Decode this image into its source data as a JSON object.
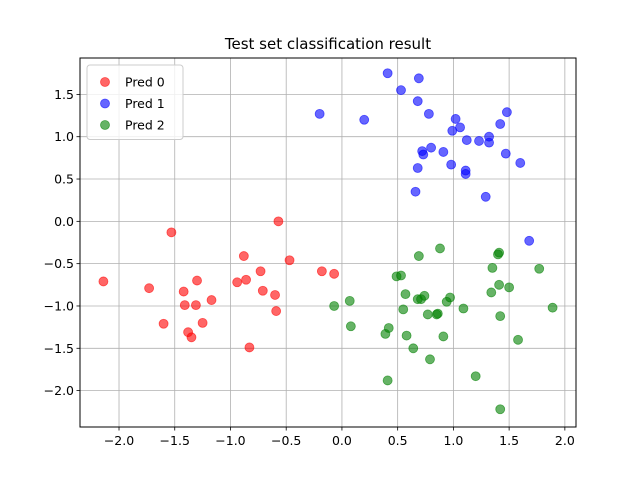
{
  "chart_data": {
    "type": "scatter",
    "title": "Test set classification result",
    "xlabel": "",
    "ylabel": "",
    "xlim": [
      -2.35,
      2.1
    ],
    "ylim": [
      -2.43,
      1.93
    ],
    "xticks": [
      -2.0,
      -1.5,
      -1.0,
      -0.5,
      0.0,
      0.5,
      1.0,
      1.5,
      2.0
    ],
    "xtick_labels": [
      "−2.0",
      "−1.5",
      "−1.0",
      "−0.5",
      "0.0",
      "0.5",
      "1.0",
      "1.5",
      "2.0"
    ],
    "yticks": [
      -2.0,
      -1.5,
      -1.0,
      -0.5,
      0.0,
      0.5,
      1.0,
      1.5
    ],
    "ytick_labels": [
      "−2.0",
      "−1.5",
      "−1.0",
      "−0.5",
      "0.0",
      "0.5",
      "1.0",
      "1.5"
    ],
    "grid": true,
    "legend_position": "top-left",
    "series": [
      {
        "name": "Pred 0",
        "color": "#ff0000",
        "points": [
          [
            -2.14,
            -0.71
          ],
          [
            -1.73,
            -0.79
          ],
          [
            -1.53,
            -0.13
          ],
          [
            -1.42,
            -0.83
          ],
          [
            -1.41,
            -0.99
          ],
          [
            -1.3,
            -0.7
          ],
          [
            -1.31,
            -0.99
          ],
          [
            -1.38,
            -1.31
          ],
          [
            -1.35,
            -1.37
          ],
          [
            -1.25,
            -1.2
          ],
          [
            -1.6,
            -1.21
          ],
          [
            -1.17,
            -0.93
          ],
          [
            -0.94,
            -0.72
          ],
          [
            -0.88,
            -0.41
          ],
          [
            -0.86,
            -0.69
          ],
          [
            -0.83,
            -1.49
          ],
          [
            -0.73,
            -0.59
          ],
          [
            -0.71,
            -0.82
          ],
          [
            -0.6,
            -0.87
          ],
          [
            -0.59,
            -1.06
          ],
          [
            -0.57,
            0.0
          ],
          [
            -0.47,
            -0.46
          ],
          [
            -0.18,
            -0.59
          ],
          [
            -0.07,
            -0.62
          ]
        ]
      },
      {
        "name": "Pred 1",
        "color": "#0000ff",
        "points": [
          [
            -0.2,
            1.27
          ],
          [
            0.2,
            1.2
          ],
          [
            0.41,
            1.75
          ],
          [
            0.53,
            1.55
          ],
          [
            0.69,
            1.69
          ],
          [
            0.68,
            1.42
          ],
          [
            0.78,
            1.27
          ],
          [
            0.72,
            0.83
          ],
          [
            0.73,
            0.79
          ],
          [
            0.8,
            0.87
          ],
          [
            0.68,
            0.63
          ],
          [
            0.66,
            0.35
          ],
          [
            0.91,
            0.82
          ],
          [
            0.98,
            0.67
          ],
          [
            0.99,
            1.07
          ],
          [
            1.02,
            1.21
          ],
          [
            1.06,
            1.11
          ],
          [
            1.12,
            0.96
          ],
          [
            1.11,
            0.6
          ],
          [
            1.11,
            0.56
          ],
          [
            1.23,
            0.95
          ],
          [
            1.32,
            1.0
          ],
          [
            1.32,
            0.93
          ],
          [
            1.29,
            0.29
          ],
          [
            1.42,
            1.15
          ],
          [
            1.48,
            1.29
          ],
          [
            1.47,
            0.8
          ],
          [
            1.6,
            0.69
          ],
          [
            1.68,
            -0.23
          ]
        ]
      },
      {
        "name": "Pred 2",
        "color": "#008000",
        "points": [
          [
            -0.07,
            -1.0
          ],
          [
            0.07,
            -0.94
          ],
          [
            0.08,
            -1.24
          ],
          [
            0.39,
            -1.33
          ],
          [
            0.41,
            -1.88
          ],
          [
            0.42,
            -1.26
          ],
          [
            0.49,
            -0.65
          ],
          [
            0.53,
            -0.64
          ],
          [
            0.55,
            -1.04
          ],
          [
            0.57,
            -0.86
          ],
          [
            0.58,
            -1.35
          ],
          [
            0.64,
            -1.5
          ],
          [
            0.68,
            -0.92
          ],
          [
            0.69,
            -0.41
          ],
          [
            0.71,
            -0.92
          ],
          [
            0.74,
            -0.88
          ],
          [
            0.77,
            -1.1
          ],
          [
            0.79,
            -1.63
          ],
          [
            0.85,
            -1.1
          ],
          [
            0.86,
            -1.09
          ],
          [
            0.88,
            -0.32
          ],
          [
            0.91,
            -1.36
          ],
          [
            0.94,
            -0.95
          ],
          [
            0.97,
            -0.9
          ],
          [
            1.09,
            -1.03
          ],
          [
            1.2,
            -1.83
          ],
          [
            1.34,
            -0.84
          ],
          [
            1.35,
            -0.55
          ],
          [
            1.4,
            -0.39
          ],
          [
            1.41,
            -0.37
          ],
          [
            1.41,
            -0.75
          ],
          [
            1.42,
            -1.12
          ],
          [
            1.42,
            -2.22
          ],
          [
            1.5,
            -0.78
          ],
          [
            1.58,
            -1.4
          ],
          [
            1.77,
            -0.56
          ],
          [
            1.89,
            -1.02
          ]
        ]
      }
    ]
  }
}
